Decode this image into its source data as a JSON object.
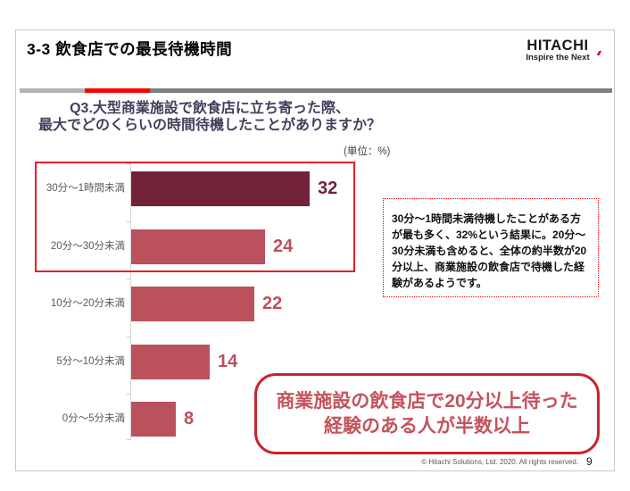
{
  "header": {
    "title": "3-3  飲食店での最長待機時間",
    "logo": "HITACHI",
    "logo_tagline": "Inspire the Next"
  },
  "question": {
    "line1": "Q3.大型商業施設で飲食店に立ち寄った際、",
    "line2": "最大でどのくらいの時間待機したことがありますか？"
  },
  "unit_label": "(単位：%)",
  "chart_data": {
    "type": "bar",
    "orientation": "horizontal",
    "categories": [
      "30分～1時間未満",
      "20分～30分未満",
      "10分～20分未満",
      "5分～10分未満",
      "0分～5分未満"
    ],
    "values": [
      32,
      24,
      22,
      14,
      8
    ],
    "unit": "%",
    "xlim": [
      0,
      36
    ],
    "bar_colors": [
      "#722339",
      "#ba515c",
      "#ba515c",
      "#ba515c",
      "#ba515c"
    ],
    "value_label_colors": [
      "#722339",
      "#bb4f5c",
      "#bb4f5c",
      "#bb4f5c",
      "#bb4f5c"
    ],
    "highlight_note": "top two bars outlined with red rectangle"
  },
  "annotation_box": {
    "text": "30分～1時間未満待機したことがある方が最も多く、32%という結果に。20分～30分未満も含めると、全体の約半数が20分以上、商業施設の飲食店で待機した経験があるようです。",
    "border_color": "#fe0000"
  },
  "callout": {
    "line1": "商業施設の飲食店で20分以上待った",
    "line2": "経験のある人が半数以上",
    "border_color": "#c9242d",
    "text_color": "#c4535c"
  },
  "footer": {
    "copyright": "© Hitachi Solutions, Ltd. 2020. All rights reserved.",
    "page_number": "9"
  },
  "colors": {
    "highlight_rect": "#ee1c25",
    "divider_light_gray": "#b3b3b3",
    "divider_red": "#fe0000",
    "divider_dark_gray": "#7f7f7f",
    "question_text": "#443e5e",
    "category_label": "#595959"
  }
}
